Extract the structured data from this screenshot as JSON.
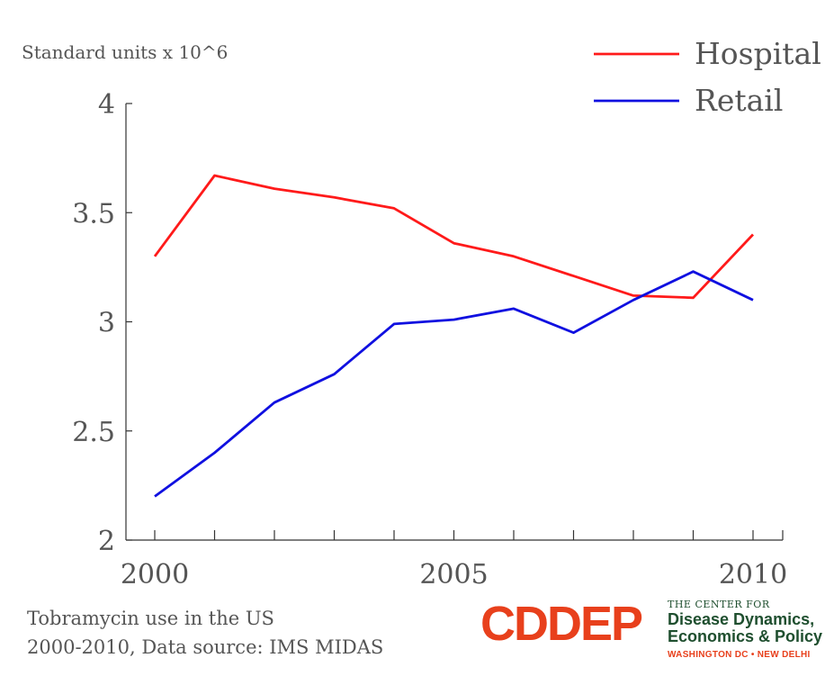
{
  "chart_data": {
    "type": "line",
    "ylabel": "Standard units x 10^6",
    "xlim": [
      2000,
      2010
    ],
    "ylim": [
      2,
      4
    ],
    "x_ticks": [
      2000,
      2005,
      2010
    ],
    "y_ticks": [
      "2",
      "2.5",
      "3",
      "3.5",
      "4"
    ],
    "x": [
      2000,
      2001,
      2002,
      2003,
      2004,
      2005,
      2006,
      2007,
      2008,
      2009,
      2010
    ],
    "legend_position": "top-right",
    "grid": false,
    "series": [
      {
        "name": "Hospital",
        "color": "#ff1a1a",
        "values": [
          3.3,
          3.67,
          3.61,
          3.57,
          3.52,
          3.36,
          3.3,
          3.21,
          3.12,
          3.11,
          3.4
        ]
      },
      {
        "name": "Retail",
        "color": "#1010e0",
        "values": [
          2.2,
          2.4,
          2.63,
          2.76,
          2.99,
          3.01,
          3.06,
          2.95,
          3.1,
          3.23,
          3.1
        ]
      }
    ]
  },
  "caption": {
    "line1": "Tobramycin use in the US",
    "line2": "2000-2010, Data source: IMS MIDAS"
  },
  "logo": {
    "mark": "CDDEP",
    "small": "THE CENTER FOR",
    "line1": "Disease Dynamics,",
    "line2": "Economics & Policy",
    "locations": "WASHINGTON DC • NEW DELHI"
  }
}
